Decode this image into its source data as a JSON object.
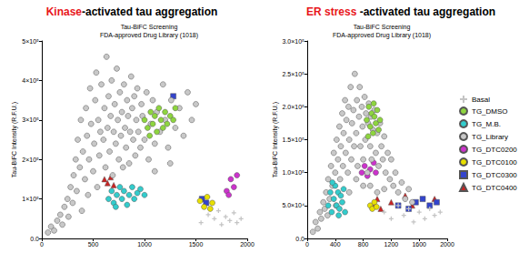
{
  "chart_data": [
    {
      "type": "scatter",
      "title": [
        {
          "text": "Kinase",
          "color": "#e8161b"
        },
        {
          "text": "-activated tau aggregation"
        }
      ],
      "subtitle": "Tau-BiFC Screening\nFDA-approved Drug Library (1018)",
      "ylabel": "Tau-BiFC Intensity (R.F.U.)",
      "xlim": [
        0,
        2000
      ],
      "xticks": [
        0,
        500,
        1000,
        1500,
        2000
      ],
      "ylim": [
        0,
        500000
      ],
      "yticks": [
        {
          "value": 0,
          "label": "0.0"
        },
        {
          "value": 100000,
          "label": "1×10⁵"
        },
        {
          "value": 200000,
          "label": "2×10⁵"
        },
        {
          "value": 300000,
          "label": "3×10⁵"
        },
        {
          "value": 400000,
          "label": "4×10⁵"
        },
        {
          "value": 500000,
          "label": "5×10⁵"
        }
      ],
      "grid": false,
      "series": [
        {
          "name": "Basal",
          "color": "#c4c4c4",
          "marker": "plus",
          "x": [
            1550,
            1620,
            1680,
            1720,
            1750,
            1790,
            1830,
            1870,
            1900,
            1940
          ],
          "values": [
            40000,
            60000,
            50000,
            70000,
            35000,
            55000,
            45000,
            65000,
            40000,
            50000
          ]
        },
        {
          "name": "TG_DMSO",
          "color": "#8ed53f",
          "marker": "circle",
          "x": [
            1000,
            1030,
            1060,
            1080,
            1100,
            1120,
            1140,
            1160,
            1180,
            1200,
            1220,
            1250,
            1280,
            1050,
            1300
          ],
          "values": [
            300000,
            280000,
            320000,
            290000,
            310000,
            270000,
            330000,
            300000,
            280000,
            320000,
            290000,
            310000,
            300000,
            260000,
            330000
          ]
        },
        {
          "name": "TG_M.B.",
          "color": "#33cccc",
          "marker": "circle",
          "x": [
            650,
            680,
            700,
            730,
            760,
            780,
            800,
            830,
            850,
            880,
            900,
            930,
            960,
            720,
            1000
          ],
          "values": [
            100000,
            120000,
            90000,
            110000,
            130000,
            100000,
            120000,
            85000,
            110000,
            130000,
            100000,
            115000,
            125000,
            80000,
            110000
          ]
        },
        {
          "name": "TG_Library",
          "color": "#c8c8c8",
          "marker": "circle",
          "x": [
            60,
            90,
            120,
            150,
            180,
            200,
            220,
            250,
            260,
            280,
            300,
            310,
            330,
            340,
            350,
            370,
            380,
            390,
            400,
            420,
            430,
            440,
            450,
            460,
            470,
            480,
            500,
            510,
            520,
            530,
            540,
            550,
            560,
            570,
            580,
            600,
            610,
            620,
            630,
            640,
            650,
            660,
            670,
            680,
            690,
            700,
            710,
            720,
            730,
            740,
            750,
            760,
            770,
            780,
            790,
            800,
            810,
            820,
            830,
            840,
            850,
            860,
            870,
            880,
            890,
            900,
            910,
            920,
            930,
            940,
            960,
            970,
            980,
            1000,
            1020,
            1040,
            1060,
            1080,
            1100,
            1120,
            1150,
            1180,
            1200,
            1230,
            1260,
            1300,
            1340,
            1380,
            1420,
            1460,
            1500,
            1100,
            1250
          ],
          "values": [
            15000,
            30000,
            20000,
            45000,
            60000,
            35000,
            80000,
            100000,
            55000,
            130000,
            90000,
            160000,
            200000,
            120000,
            250000,
            180000,
            300000,
            70000,
            220000,
            150000,
            330000,
            260000,
            110000,
            200000,
            380000,
            290000,
            170000,
            240000,
            350000,
            420000,
            130000,
            300000,
            210000,
            270000,
            390000,
            250000,
            330000,
            180000,
            460000,
            280000,
            360000,
            220000,
            310000,
            400000,
            160000,
            270000,
            340000,
            240000,
            430000,
            300000,
            200000,
            370000,
            260000,
            320000,
            180000,
            390000,
            280000,
            230000,
            350000,
            310000,
            190000,
            270000,
            410000,
            330000,
            250000,
            360000,
            210000,
            300000,
            380000,
            270000,
            230000,
            340000,
            310000,
            250000,
            370000,
            200000,
            290000,
            350000,
            240000,
            320000,
            270000,
            390000,
            300000,
            230000,
            350000,
            280000,
            330000,
            260000,
            370000,
            300000,
            340000,
            170000,
            190000
          ]
        },
        {
          "name": "TG_DTC0200",
          "color": "#cc33cc",
          "marker": "circle",
          "x": [
            1800,
            1840,
            1870,
            1900,
            1820
          ],
          "values": [
            120000,
            150000,
            130000,
            160000,
            110000
          ]
        },
        {
          "name": "TG_DTC0100",
          "color": "#e8e000",
          "marker": "circle",
          "x": [
            1540,
            1580,
            1610,
            1640,
            1660
          ],
          "values": [
            95000,
            80000,
            105000,
            75000,
            90000
          ]
        },
        {
          "name": "TG_DTC0300",
          "color": "#3344cc",
          "marker": "square",
          "x": [
            1280,
            1560,
            1600
          ],
          "values": [
            360000,
            100000,
            90000
          ]
        },
        {
          "name": "TG_DTC0400",
          "color": "#cc2222",
          "marker": "triangle",
          "x": [
            610,
            640,
            670,
            700
          ],
          "values": [
            150000,
            140000,
            155000,
            135000
          ]
        }
      ]
    },
    {
      "type": "scatter",
      "title": [
        {
          "text": "ER stress",
          "color": "#e8161b"
        },
        {
          "text": " -activated tau aggregation"
        }
      ],
      "subtitle": "Tau-BiFC Screening\nFDA-approved Drug Library (1018)",
      "ylabel": "Tau-BiFC Intensity (R.F.U.)",
      "xlim": [
        0,
        2000
      ],
      "xticks": [
        0,
        400,
        800,
        1200,
        1600,
        2000
      ],
      "ylim": [
        0,
        300000
      ],
      "yticks": [
        {
          "value": 0,
          "label": "0.0"
        },
        {
          "value": 50000,
          "label": "5.0×10⁴"
        },
        {
          "value": 100000,
          "label": "1.0×10⁵"
        },
        {
          "value": 150000,
          "label": "1.5×10⁵"
        },
        {
          "value": 200000,
          "label": "2.0×10⁵"
        },
        {
          "value": 250000,
          "label": "2.5×10⁵"
        },
        {
          "value": 300000,
          "label": "3.0×10⁵"
        }
      ],
      "grid": false,
      "legend": "right",
      "series": [
        {
          "name": "Basal",
          "color": "#c4c4c4",
          "marker": "plus",
          "x": [
            1100,
            1200,
            1300,
            1380,
            1450,
            1520,
            1600,
            1680,
            1750,
            1820,
            1900
          ],
          "values": [
            40000,
            30000,
            50000,
            35000,
            45000,
            25000,
            40000,
            30000,
            45000,
            35000,
            40000
          ]
        },
        {
          "name": "TG_DMSO",
          "color": "#8ed53f",
          "marker": "circle",
          "x": [
            850,
            880,
            900,
            920,
            940,
            960,
            980,
            1000,
            1020,
            1040,
            870,
            950
          ],
          "values": [
            180000,
            200000,
            170000,
            190000,
            160000,
            185000,
            175000,
            195000,
            165000,
            180000,
            155000,
            205000
          ]
        },
        {
          "name": "TG_M.B.",
          "color": "#33cccc",
          "marker": "circle",
          "x": [
            300,
            330,
            350,
            380,
            400,
            420,
            440,
            460,
            480,
            500,
            520,
            540,
            360,
            450
          ],
          "values": [
            50000,
            70000,
            40000,
            60000,
            80000,
            50000,
            70000,
            45000,
            65000,
            55000,
            75000,
            40000,
            85000,
            35000
          ]
        },
        {
          "name": "TG_Library",
          "color": "#c8c8c8",
          "marker": "circle",
          "x": [
            80,
            120,
            150,
            180,
            200,
            230,
            250,
            270,
            290,
            300,
            320,
            340,
            360,
            380,
            400,
            410,
            420,
            440,
            460,
            470,
            480,
            500,
            510,
            520,
            540,
            550,
            560,
            580,
            590,
            600,
            620,
            630,
            640,
            660,
            670,
            680,
            700,
            710,
            720,
            740,
            750,
            760,
            780,
            790,
            800,
            820,
            830,
            840,
            860,
            870,
            880,
            900,
            910,
            920,
            940,
            960,
            980,
            1000,
            1020,
            1040,
            1060,
            1080,
            1100,
            1120,
            1150,
            1180,
            1200,
            1230,
            1260,
            1300,
            1350,
            1400,
            1450,
            1500,
            700,
            900,
            1000,
            600,
            800,
            1100
          ],
          "values": [
            10000,
            25000,
            15000,
            40000,
            30000,
            55000,
            45000,
            70000,
            35000,
            90000,
            60000,
            110000,
            80000,
            130000,
            100000,
            50000,
            150000,
            120000,
            170000,
            90000,
            140000,
            190000,
            110000,
            160000,
            210000,
            130000,
            180000,
            100000,
            200000,
            150000,
            230000,
            120000,
            175000,
            195000,
            140000,
            250000,
            160000,
            210000,
            110000,
            185000,
            230000,
            140000,
            200000,
            170000,
            120000,
            215000,
            150000,
            190000,
            100000,
            175000,
            205000,
            140000,
            185000,
            120000,
            165000,
            195000,
            130000,
            160000,
            110000,
            175000,
            140000,
            120000,
            155000,
            100000,
            130000,
            90000,
            120000,
            80000,
            100000,
            70000,
            85000,
            60000,
            75000,
            55000,
            90000,
            80000,
            70000,
            70000,
            80000,
            75000
          ]
        },
        {
          "name": "TG_DTC0200",
          "color": "#cc33cc",
          "marker": "circle",
          "x": [
            780,
            820,
            860,
            900,
            950,
            980
          ],
          "values": [
            100000,
            110000,
            95000,
            105000,
            115000,
            100000
          ]
        },
        {
          "name": "TG_DTC0100",
          "color": "#e8e000",
          "marker": "circle",
          "x": [
            900,
            930,
            960,
            990
          ],
          "values": [
            50000,
            45000,
            55000,
            48000
          ]
        },
        {
          "name": "TG_DTC0300",
          "color": "#3344cc",
          "marker": "square",
          "x": [
            1300,
            1450,
            1550,
            1650,
            1750,
            1850
          ],
          "values": [
            50000,
            45000,
            55000,
            60000,
            50000,
            55000
          ]
        },
        {
          "name": "TG_DTC0400",
          "color": "#cc2222",
          "marker": "triangle",
          "x": [
            960,
            1000,
            1050,
            1200,
            1400,
            1500,
            1820
          ],
          "values": [
            50000,
            60000,
            45000,
            55000,
            65000,
            50000,
            60000
          ]
        }
      ]
    }
  ]
}
